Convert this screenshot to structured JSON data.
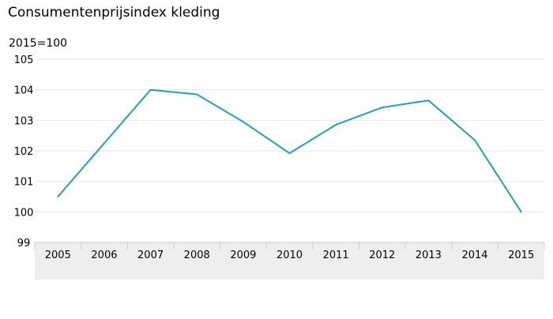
{
  "chart_data": {
    "type": "line",
    "title": "Consumentenprijsindex kleding",
    "ylabel": "2015=100",
    "xlabel": "",
    "ylim": [
      99,
      105
    ],
    "yticks": [
      99,
      100,
      101,
      102,
      103,
      104,
      105
    ],
    "categories": [
      "2005",
      "2006",
      "2007",
      "2008",
      "2009",
      "2010",
      "2011",
      "2012",
      "2013",
      "2014",
      "2015"
    ],
    "series": [
      {
        "values": [
          100.5,
          102.25,
          104.0,
          103.85,
          102.95,
          101.92,
          102.85,
          103.42,
          103.65,
          102.35,
          100.0
        ]
      }
    ],
    "grid": true,
    "colors": {
      "line": "#1aa3bd",
      "grid": "#e6e6e6",
      "axis_band": "#eeeeee",
      "axis_border": "#cccccc"
    }
  }
}
